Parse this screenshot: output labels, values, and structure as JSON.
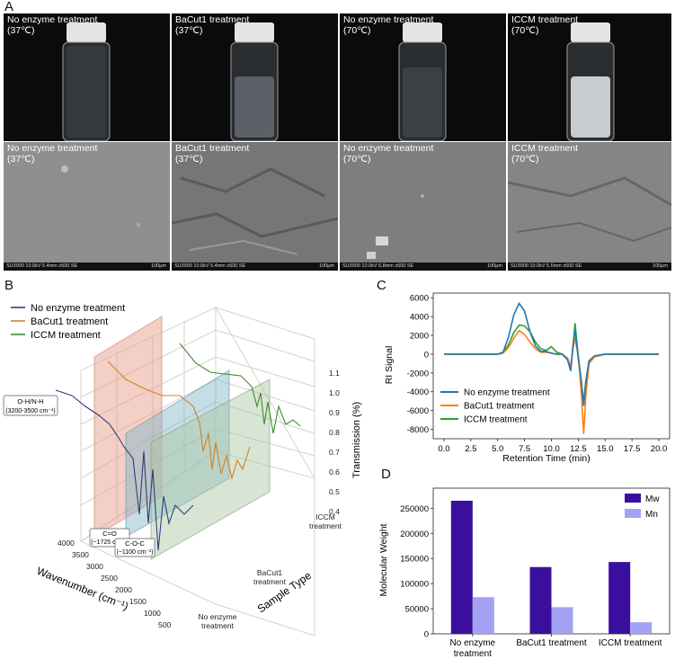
{
  "panels": {
    "a": "A",
    "b": "B",
    "c": "C",
    "d": "D"
  },
  "photos": [
    {
      "l1": "No enzyme treatment",
      "l2": "(37℃)",
      "clear": true
    },
    {
      "l1": "BaCut1 treatment",
      "l2": "(37℃)",
      "clear": true
    },
    {
      "l1": "No enzyme treatment",
      "l2": "(70℃)",
      "clear": true
    },
    {
      "l1": "ICCM treatment",
      "l2": "(70℃)",
      "clear": false
    }
  ],
  "sem": [
    {
      "l1": "No enzyme treatment",
      "l2": "(37℃)",
      "bar": "SU3900 10.0kV 5.4mm x500 SE",
      "scale": "100μm",
      "rough": false
    },
    {
      "l1": "BaCut1 treatment",
      "l2": "(37℃)",
      "bar": "SU3900 10.0kV 5.4mm x500 SE",
      "scale": "100μm",
      "rough": true
    },
    {
      "l1": "No enzyme treatment",
      "l2": "(70℃)",
      "bar": "SU3900 10.0kV 6.8mm x500 SE",
      "scale": "100μm",
      "rough": false
    },
    {
      "l1": "ICCM treatment",
      "l2": "(70℃)",
      "bar": "SU3900 10.0kV 5.5mm x500 SE",
      "scale": "100μm",
      "rough": true
    }
  ],
  "colors": {
    "no_enzyme": "#2b3f7e",
    "bacut1": "#d08224",
    "iccm": "#3f8a2c",
    "rect_red": "#e8a08c",
    "rect_blue": "#7fb3c6",
    "rect_green": "#a9c6a0",
    "c_blue": "#1f77b4",
    "c_orange": "#ff7f0e",
    "c_green": "#2ca02c",
    "mw": "#3b0f9e",
    "mn": "#a3a2f2"
  },
  "panel_b": {
    "legend": [
      "No enzyme treatment",
      "BaCut1 treatment",
      "ICCM treatment"
    ],
    "annotations": [
      {
        "line1": "O-H/N-H",
        "line2": "(3200-3500 cm⁻¹)"
      },
      {
        "line1": "C=O",
        "line2": "(~1725 cm⁻¹)"
      },
      {
        "line1": "C-O-C",
        "line2": "(~1100 cm⁻¹)"
      }
    ],
    "xlabel": "Wavenumber (cm⁻¹)",
    "ylabel": "Sample Type",
    "zlabel": "Transmission (%)",
    "xticks": [
      "4000",
      "3500",
      "3000",
      "2500",
      "2000",
      "1500",
      "1000",
      "500"
    ],
    "yticks": [
      {
        "l1": "No enzyme",
        "l2": "treatment"
      },
      {
        "l1": "BaCut1",
        "l2": "treatment"
      },
      {
        "l1": "ICCM",
        "l2": "treatment"
      }
    ],
    "zticks": [
      "0.4",
      "0.5",
      "0.6",
      "0.7",
      "0.8",
      "0.9",
      "1.0",
      "1.1"
    ]
  },
  "chart_data": [
    {
      "type": "line",
      "panel": "C",
      "title": "",
      "xlabel": "Retention Time (min)",
      "ylabel": "RI Signal",
      "xlim": [
        -1,
        21
      ],
      "ylim": [
        -9000,
        6500
      ],
      "xticks": [
        "0.0",
        "2.5",
        "5.0",
        "7.5",
        "10.0",
        "12.5",
        "15.0",
        "17.5",
        "20.0"
      ],
      "yticks": [
        "6000",
        "4000",
        "2000",
        "0",
        "-2000",
        "-4000",
        "-6000",
        "-8000"
      ],
      "legend_position": "lower-left",
      "series": [
        {
          "name": "No enzyme treatment",
          "color": "#1f77b4",
          "x": [
            0,
            5,
            5.5,
            6,
            6.5,
            7,
            7.5,
            8,
            8.5,
            9,
            9.5,
            10,
            10.5,
            11,
            11.5,
            11.8,
            12,
            12.2,
            12.4,
            12.6,
            12.8,
            13,
            13.2,
            13.5,
            14,
            15,
            17.5,
            20
          ],
          "y": [
            0,
            0,
            200,
            1800,
            4200,
            5400,
            4600,
            2400,
            900,
            300,
            300,
            100,
            0,
            0,
            -600,
            -1800,
            800,
            2600,
            600,
            -1200,
            -3000,
            -5500,
            -3000,
            -700,
            -200,
            0,
            0,
            0
          ]
        },
        {
          "name": "BaCut1 treatment",
          "color": "#ff7f0e",
          "x": [
            0,
            5,
            5.5,
            6,
            6.5,
            7,
            7.5,
            8,
            8.5,
            9,
            9.5,
            10,
            10.5,
            11,
            11.5,
            11.8,
            12,
            12.2,
            12.4,
            12.6,
            12.8,
            13,
            13.2,
            13.5,
            14,
            15,
            17.5,
            20
          ],
          "y": [
            0,
            0,
            100,
            700,
            1700,
            2500,
            2100,
            1300,
            600,
            200,
            200,
            100,
            0,
            0,
            -400,
            -1300,
            500,
            1800,
            400,
            -1500,
            -4500,
            -8500,
            -4500,
            -1000,
            -300,
            0,
            0,
            0
          ]
        },
        {
          "name": "ICCM treatment",
          "color": "#2ca02c",
          "x": [
            0,
            5,
            5.5,
            6,
            6.5,
            7,
            7.5,
            8,
            8.5,
            9,
            9.5,
            10,
            10.5,
            11,
            11.5,
            11.8,
            12,
            12.2,
            12.4,
            12.6,
            12.8,
            13,
            13.2,
            13.5,
            14,
            15,
            17.5,
            20
          ],
          "y": [
            0,
            0,
            150,
            1000,
            2300,
            3100,
            3000,
            2400,
            1300,
            600,
            400,
            800,
            200,
            0,
            -500,
            -1500,
            700,
            3300,
            900,
            -1300,
            -3500,
            -5000,
            -2800,
            -800,
            -200,
            0,
            0,
            0
          ]
        }
      ]
    },
    {
      "type": "bar",
      "panel": "D",
      "title": "",
      "xlabel": "",
      "ylabel": "Molecular Weight",
      "ylim": [
        0,
        290000
      ],
      "categories": [
        {
          "l1": "No enzyme",
          "l2": "treatment"
        },
        {
          "l1": "BaCut1 treatment",
          "l2": ""
        },
        {
          "l1": "ICCM treatment",
          "l2": ""
        }
      ],
      "yticks": [
        "0",
        "50000",
        "100000",
        "150000",
        "200000",
        "250000"
      ],
      "legend_position": "top-right",
      "series": [
        {
          "name": "Mw",
          "color": "#3b0f9e",
          "values": [
            265000,
            133000,
            143000
          ]
        },
        {
          "name": "Mn",
          "color": "#a3a2f2",
          "values": [
            73000,
            53000,
            23000
          ]
        }
      ]
    }
  ]
}
